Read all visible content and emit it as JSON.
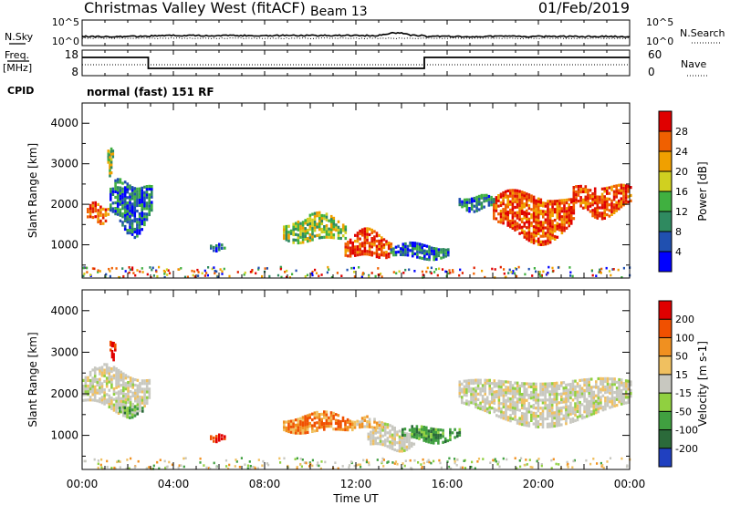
{
  "header": {
    "station": "Christmas Valley West (fitACF)",
    "beam": "Beam 13",
    "date": "01/Feb/2019"
  },
  "noise_panel": {
    "left_label": "N.Sky",
    "right_label": "N.Search",
    "left_ticks": [
      "10^5",
      "10^0"
    ],
    "right_ticks": [
      "10^5",
      "10^0"
    ]
  },
  "freq_panel": {
    "left_label": "Freq.",
    "left_unit": "[MHz]",
    "right_label": "Nave",
    "left_ticks": [
      "18",
      "8"
    ],
    "right_ticks": [
      "60",
      "0"
    ],
    "freq_steps": [
      {
        "hour": 0,
        "level": "high"
      },
      {
        "hour": 2.9,
        "level": "low"
      },
      {
        "hour": 15,
        "level": "high"
      },
      {
        "hour": 24,
        "level": "high"
      }
    ]
  },
  "cpid": {
    "label": "CPID",
    "mode": "normal (fast) 151 RF"
  },
  "x_axis": {
    "label": "Time UT",
    "ticks": [
      "00:00",
      "04:00",
      "08:00",
      "12:00",
      "16:00",
      "20:00",
      "00:00"
    ],
    "range_hours": [
      0,
      24
    ]
  },
  "y_axis": {
    "label": "Slant Range [km]",
    "ticks": [
      "4000",
      "3000",
      "2000",
      "1000"
    ],
    "range_km": [
      180,
      4500
    ]
  },
  "colors": {
    "power": [
      "#0000ff",
      "#2050b0",
      "#2f8a60",
      "#40b040",
      "#d0d020",
      "#f0a000",
      "#f06000",
      "#e02000",
      "#e00000"
    ],
    "velocity": [
      "#2040c0",
      "#2b6a3a",
      "#40a040",
      "#90d040",
      "#c8c8c0",
      "#f0c060",
      "#f09020",
      "#f05000",
      "#e00000"
    ]
  },
  "chart_data": [
    {
      "type": "heatmap",
      "name": "power",
      "colorbar_label": "Power [dB]",
      "colorbar_ticks": [
        "28",
        "24",
        "20",
        "16",
        "12",
        "8",
        "4"
      ],
      "regions": [
        {
          "t0": 0.2,
          "t1": 1.1,
          "r0": 1600,
          "r1": 2100,
          "level": "high"
        },
        {
          "t0": 1.2,
          "t1": 3.0,
          "r0": 1400,
          "r1": 2700,
          "level": "low"
        },
        {
          "t0": 1.1,
          "t1": 1.3,
          "r0": 2800,
          "r1": 3500,
          "level": "mid"
        },
        {
          "t0": 5.6,
          "t1": 6.2,
          "r0": 900,
          "r1": 1100,
          "level": "low"
        },
        {
          "t0": 8.8,
          "t1": 11.5,
          "r0": 1100,
          "r1": 1800,
          "level": "mid"
        },
        {
          "t0": 11.5,
          "t1": 13.5,
          "r0": 700,
          "r1": 1400,
          "level": "high"
        },
        {
          "t0": 13.5,
          "t1": 16.0,
          "r0": 700,
          "r1": 1100,
          "level": "low"
        },
        {
          "t0": 18.0,
          "t1": 21.5,
          "r0": 1200,
          "r1": 2400,
          "level": "high"
        },
        {
          "t0": 21.5,
          "t1": 24.0,
          "r0": 1800,
          "r1": 2600,
          "level": "high"
        },
        {
          "t0": 16.5,
          "t1": 18.0,
          "r0": 1900,
          "r1": 2300,
          "level": "low"
        }
      ]
    },
    {
      "type": "heatmap",
      "name": "velocity",
      "colorbar_label": "Velocity [m s-1]",
      "colorbar_ticks": [
        "200",
        "100",
        "50",
        "15",
        "-15",
        "-50",
        "-100",
        "-200"
      ],
      "regions": [
        {
          "t0": 0.0,
          "t1": 2.9,
          "r0": 1600,
          "r1": 2700,
          "level": "gray"
        },
        {
          "t0": 1.2,
          "t1": 1.4,
          "r0": 2900,
          "r1": 3400,
          "level": "red"
        },
        {
          "t0": 1.6,
          "t1": 2.6,
          "r0": 1500,
          "r1": 1800,
          "level": "green"
        },
        {
          "t0": 5.6,
          "t1": 6.2,
          "r0": 900,
          "r1": 1100,
          "level": "red"
        },
        {
          "t0": 8.8,
          "t1": 11.8,
          "r0": 1100,
          "r1": 1600,
          "level": "orange"
        },
        {
          "t0": 11.8,
          "t1": 13.2,
          "r0": 1200,
          "r1": 1500,
          "level": "yellow"
        },
        {
          "t0": 12.5,
          "t1": 14.5,
          "r0": 700,
          "r1": 1300,
          "level": "gray"
        },
        {
          "t0": 14.0,
          "t1": 16.5,
          "r0": 900,
          "r1": 1300,
          "level": "green"
        },
        {
          "t0": 16.5,
          "t1": 24.0,
          "r0": 1400,
          "r1": 2500,
          "level": "gray"
        }
      ]
    }
  ]
}
